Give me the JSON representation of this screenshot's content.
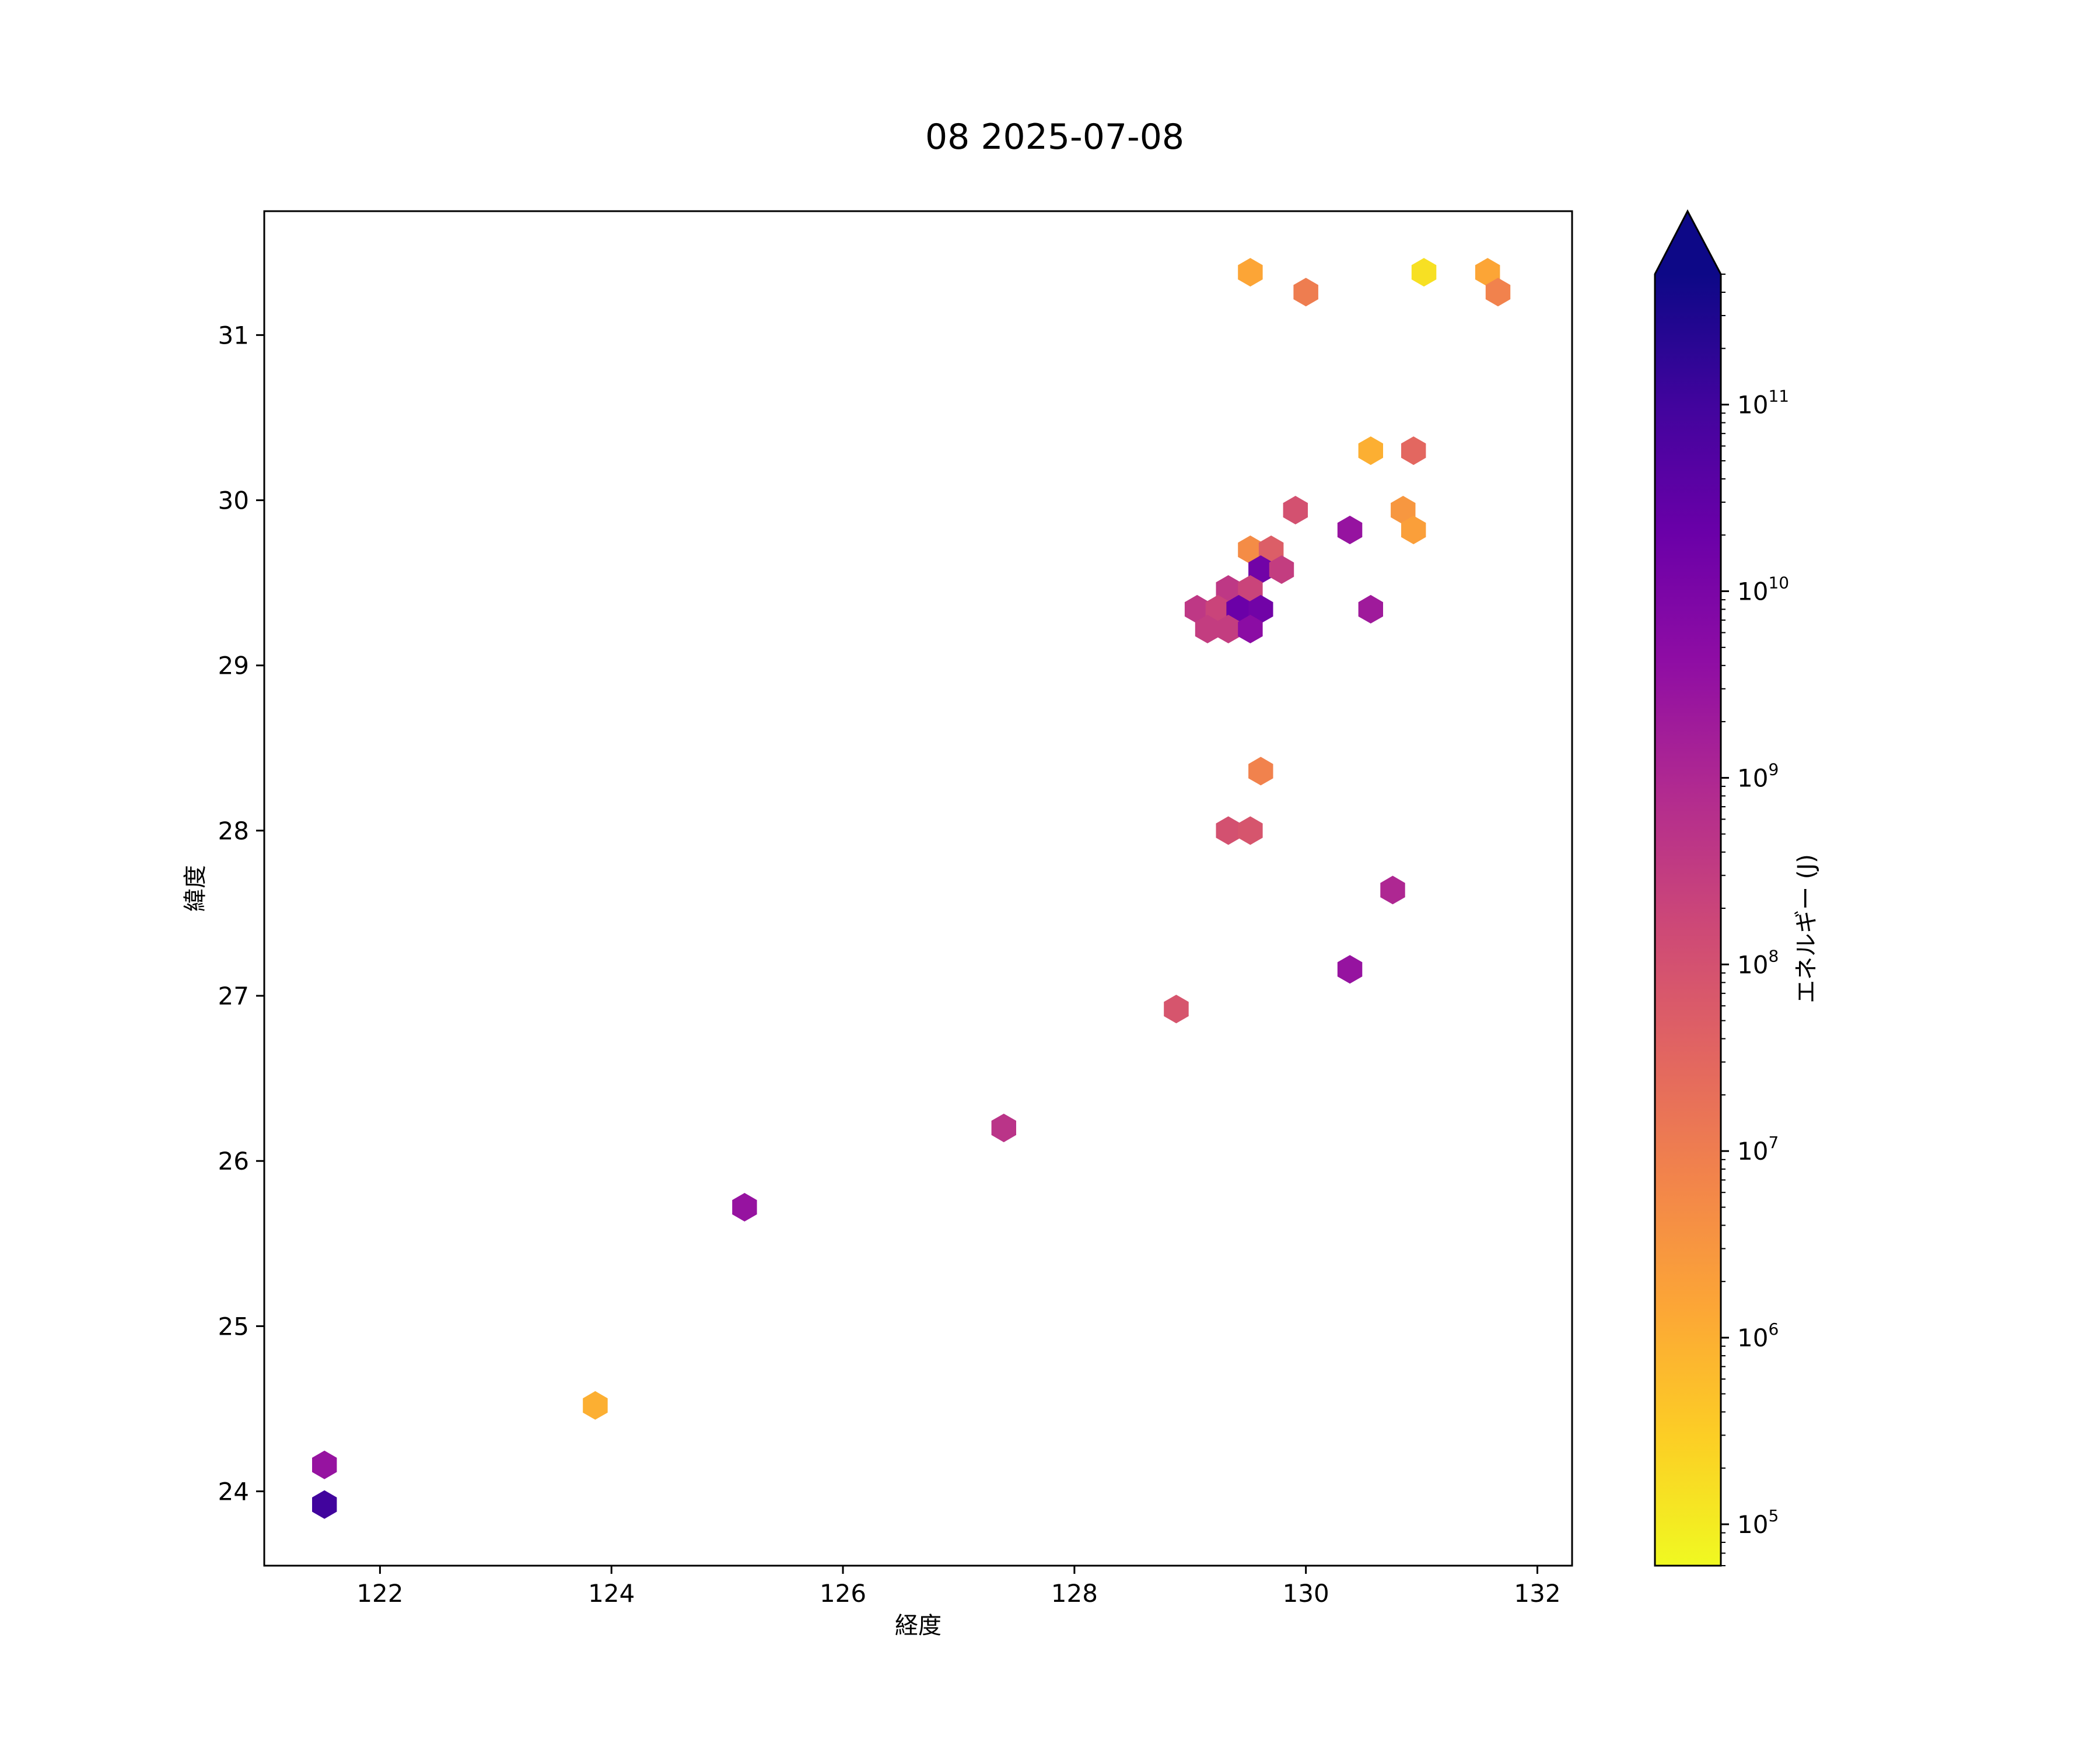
{
  "chart_data": {
    "type": "hexbin",
    "title": "08 2025-07-08",
    "xlabel": "経度",
    "ylabel": "緯度",
    "xlim": [
      121.0,
      132.3
    ],
    "ylim": [
      23.55,
      31.75
    ],
    "xticks": [
      122,
      124,
      126,
      128,
      130,
      132
    ],
    "yticks": [
      24,
      25,
      26,
      27,
      28,
      29,
      30,
      31
    ],
    "colorbar": {
      "label": "エネルギー (J)",
      "scale": "log",
      "range": [
        60000,
        500000000000
      ],
      "extend": "max",
      "colormap": "plasma",
      "ticks": [
        {
          "value": 100000,
          "base": "10",
          "exp": "5"
        },
        {
          "value": 1000000,
          "base": "10",
          "exp": "6"
        },
        {
          "value": 10000000,
          "base": "10",
          "exp": "7"
        },
        {
          "value": 100000000,
          "base": "10",
          "exp": "8"
        },
        {
          "value": 1000000000,
          "base": "10",
          "exp": "9"
        },
        {
          "value": 10000000000,
          "base": "10",
          "exp": "10"
        },
        {
          "value": 100000000000,
          "base": "10",
          "exp": "11"
        }
      ]
    },
    "points": [
      {
        "lon": 129.52,
        "lat": 31.38,
        "energy": 1500000
      },
      {
        "lon": 130.0,
        "lat": 31.26,
        "energy": 10000000
      },
      {
        "lon": 131.02,
        "lat": 31.38,
        "energy": 150000
      },
      {
        "lon": 131.57,
        "lat": 31.38,
        "energy": 1500000
      },
      {
        "lon": 131.66,
        "lat": 31.26,
        "energy": 8000000
      },
      {
        "lon": 130.56,
        "lat": 30.3,
        "energy": 1000000
      },
      {
        "lon": 130.93,
        "lat": 30.3,
        "energy": 30000000
      },
      {
        "lon": 129.91,
        "lat": 29.94,
        "energy": 100000000
      },
      {
        "lon": 130.84,
        "lat": 29.94,
        "energy": 3000000
      },
      {
        "lon": 130.93,
        "lat": 29.82,
        "energy": 2000000
      },
      {
        "lon": 130.38,
        "lat": 29.82,
        "energy": 3000000000
      },
      {
        "lon": 129.52,
        "lat": 29.7,
        "energy": 5000000
      },
      {
        "lon": 129.7,
        "lat": 29.7,
        "energy": 50000000
      },
      {
        "lon": 129.61,
        "lat": 29.58,
        "energy": 15000000000
      },
      {
        "lon": 129.79,
        "lat": 29.58,
        "energy": 300000000
      },
      {
        "lon": 129.33,
        "lat": 29.46,
        "energy": 400000000
      },
      {
        "lon": 129.52,
        "lat": 29.46,
        "energy": 200000000
      },
      {
        "lon": 129.06,
        "lat": 29.34,
        "energy": 400000000
      },
      {
        "lon": 129.24,
        "lat": 29.34,
        "energy": 200000000
      },
      {
        "lon": 129.42,
        "lat": 29.34,
        "energy": 20000000000
      },
      {
        "lon": 129.61,
        "lat": 29.34,
        "energy": 15000000000
      },
      {
        "lon": 130.56,
        "lat": 29.34,
        "energy": 2000000000
      },
      {
        "lon": 129.15,
        "lat": 29.22,
        "energy": 300000000
      },
      {
        "lon": 129.33,
        "lat": 29.22,
        "energy": 300000000
      },
      {
        "lon": 129.52,
        "lat": 29.22,
        "energy": 5000000000
      },
      {
        "lon": 129.61,
        "lat": 28.36,
        "energy": 8000000
      },
      {
        "lon": 129.33,
        "lat": 28.0,
        "energy": 100000000
      },
      {
        "lon": 129.52,
        "lat": 28.0,
        "energy": 80000000
      },
      {
        "lon": 130.75,
        "lat": 27.64,
        "energy": 1000000000
      },
      {
        "lon": 130.38,
        "lat": 27.16,
        "energy": 3000000000
      },
      {
        "lon": 128.88,
        "lat": 26.92,
        "energy": 80000000
      },
      {
        "lon": 127.39,
        "lat": 26.2,
        "energy": 500000000
      },
      {
        "lon": 125.15,
        "lat": 25.72,
        "energy": 3000000000
      },
      {
        "lon": 123.86,
        "lat": 24.52,
        "energy": 1000000
      },
      {
        "lon": 121.52,
        "lat": 24.16,
        "energy": 3000000000
      },
      {
        "lon": 121.52,
        "lat": 23.92,
        "energy": 100000000000
      }
    ]
  }
}
